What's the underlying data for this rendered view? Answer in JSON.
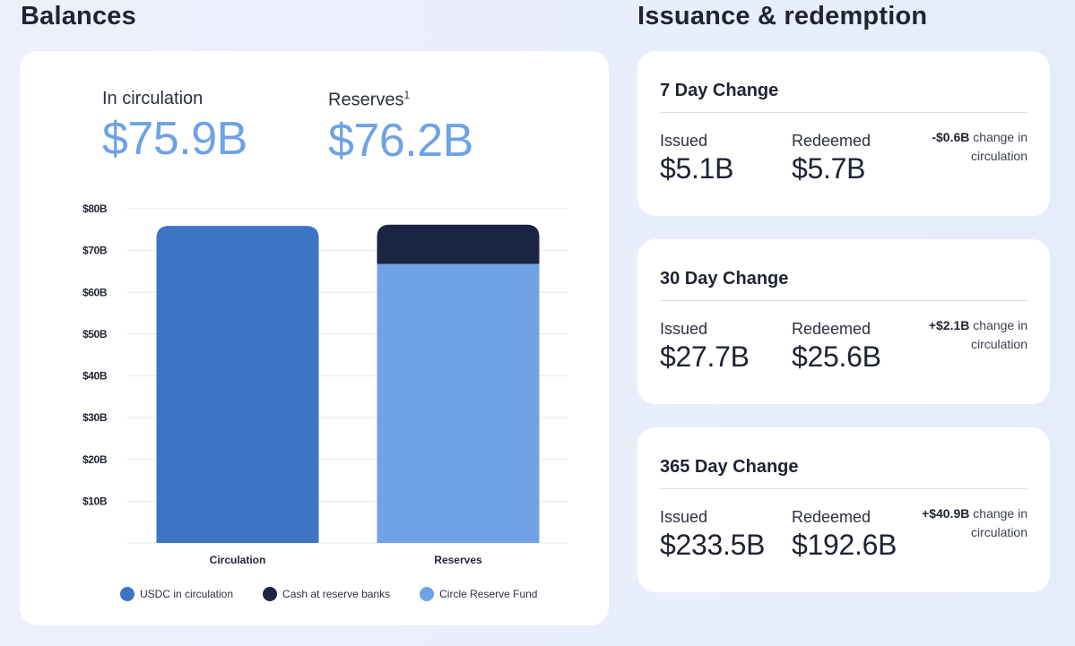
{
  "balances": {
    "title": "Balances",
    "circulation_label": "In circulation",
    "circulation_value": "$75.9B",
    "reserves_label": "Reserves",
    "reserves_footnote": "1",
    "reserves_value": "$76.2B"
  },
  "issuance": {
    "title": "Issuance & redemption",
    "cards": [
      {
        "title": "7 Day Change",
        "issued_label": "Issued",
        "issued_value": "$5.1B",
        "redeemed_label": "Redeemed",
        "redeemed_value": "$5.7B",
        "change_amount": "-$0.6B",
        "change_text": "change in circulation"
      },
      {
        "title": "30 Day Change",
        "issued_label": "Issued",
        "issued_value": "$27.7B",
        "redeemed_label": "Redeemed",
        "redeemed_value": "$25.6B",
        "change_amount": "+$2.1B",
        "change_text": "change in circulation"
      },
      {
        "title": "365 Day Change",
        "issued_label": "Issued",
        "issued_value": "$233.5B",
        "redeemed_label": "Redeemed",
        "redeemed_value": "$192.6B",
        "change_amount": "+$40.9B",
        "change_text": "change in circulation"
      }
    ]
  },
  "colors": {
    "usdc": "#3d74c4",
    "cash": "#1b2441",
    "fund": "#6fa3e5",
    "grid": "#e6e8ee",
    "value_blue": "#6ea2e6"
  },
  "chart_data": {
    "type": "bar",
    "stacked": true,
    "categories": [
      "Circulation",
      "Reserves"
    ],
    "series": [
      {
        "name": "USDC in circulation",
        "color_key": "usdc",
        "values": [
          75.9,
          0
        ]
      },
      {
        "name": "Circle Reserve Fund",
        "color_key": "fund",
        "values": [
          0,
          66.8
        ]
      },
      {
        "name": "Cash at reserve banks",
        "color_key": "cash",
        "values": [
          0,
          9.4
        ]
      }
    ],
    "legend": [
      {
        "name": "USDC in circulation",
        "color_key": "usdc"
      },
      {
        "name": "Cash at reserve banks",
        "color_key": "cash"
      },
      {
        "name": "Circle Reserve Fund",
        "color_key": "fund"
      }
    ],
    "y_ticks": [
      10,
      20,
      30,
      40,
      50,
      60,
      70,
      80
    ],
    "y_tick_labels": [
      "$10B",
      "$20B",
      "$30B",
      "$40B",
      "$50B",
      "$60B",
      "$70B",
      "$80B"
    ],
    "ylim": [
      0,
      80
    ],
    "legend_position": "bottom"
  }
}
